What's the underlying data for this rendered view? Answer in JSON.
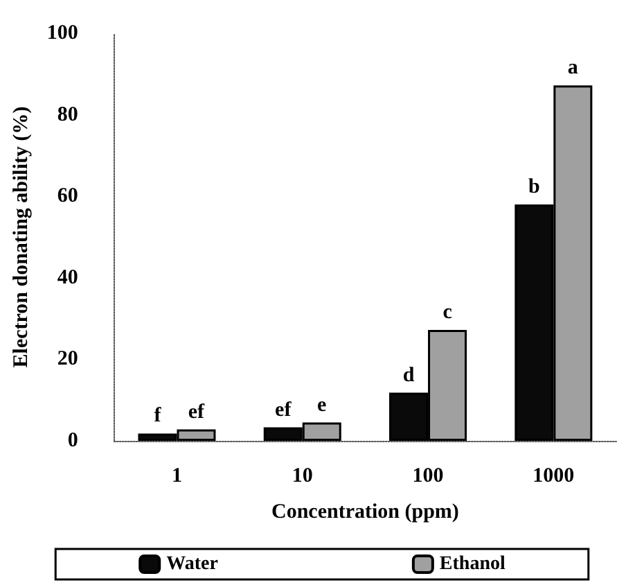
{
  "chart_data": {
    "type": "bar",
    "xlabel": "Concentration (ppm)",
    "ylabel": "Electron donating ability (%)",
    "categories": [
      "1",
      "10",
      "100",
      "1000"
    ],
    "series": [
      {
        "name": "Water",
        "color": "#0a0a0a",
        "values": [
          1.8,
          3.3,
          11.8,
          58
        ]
      },
      {
        "name": "Ethanol",
        "color": "#a0a0a0",
        "values": [
          2.8,
          4.5,
          27.2,
          87.2
        ]
      }
    ],
    "ylim": [
      0,
      100
    ],
    "yticks": [
      0,
      20,
      40,
      60,
      80,
      100
    ],
    "grid": false,
    "legend": "bottom",
    "annotations": [
      {
        "text": "f",
        "x": "1",
        "y": 1.8
      },
      {
        "text": "ef",
        "x": "1",
        "y": 2.8
      },
      {
        "text": "ef",
        "x": "10",
        "y": 3.3
      },
      {
        "text": "e",
        "x": "10",
        "y": 4.5
      },
      {
        "text": "d",
        "x": "100",
        "y": 11.8
      },
      {
        "text": "c",
        "x": "100",
        "y": 27.2
      },
      {
        "text": "b",
        "x": "1000",
        "y": 58
      },
      {
        "text": "a",
        "x": "1000",
        "y": 87.2
      }
    ]
  }
}
